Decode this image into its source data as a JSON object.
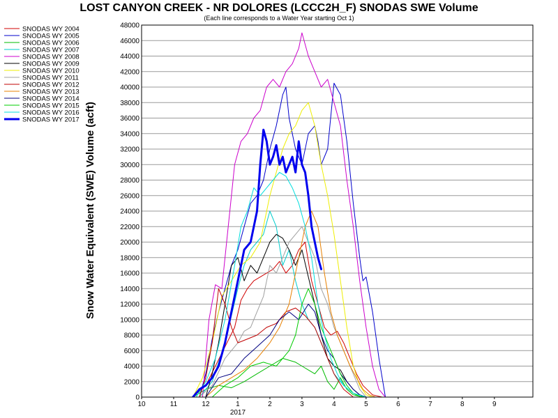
{
  "chart_data": {
    "type": "line",
    "title": "LOST CANYON CREEK - NR DOLORES (LCCC2H_F) SNODAS SWE Volume",
    "subtitle": "(Each line corresponds to a Water Year starting Oct 1)",
    "xlabel": "",
    "ylabel": "Snow Water Equivalent (SWE) Volume (acft)",
    "ylim": [
      0,
      48000
    ],
    "yticks": [
      0,
      2000,
      4000,
      6000,
      8000,
      10000,
      12000,
      14000,
      16000,
      18000,
      20000,
      22000,
      24000,
      26000,
      28000,
      30000,
      32000,
      34000,
      36000,
      38000,
      40000,
      42000,
      44000,
      46000,
      48000
    ],
    "xlim": [
      10,
      10.95
    ],
    "x_unit": "month of water year (10 = Oct 1 ... 10 = Oct 1 of next year)",
    "xticks": [
      {
        "label": "10",
        "x": 0
      },
      {
        "label": "11",
        "x": 1
      },
      {
        "label": "12",
        "x": 2
      },
      {
        "label": "1",
        "x": 3
      },
      {
        "label": "2",
        "x": 4
      },
      {
        "label": "3",
        "x": 5
      },
      {
        "label": "4",
        "x": 6
      },
      {
        "label": "5",
        "x": 7
      },
      {
        "label": "6",
        "x": 8
      },
      {
        "label": "7",
        "x": 9
      },
      {
        "label": "8",
        "x": 10
      },
      {
        "label": "9",
        "x": 11
      }
    ],
    "x_sublabel": "2017",
    "x_domain": [
      0,
      12.2
    ],
    "grid": true,
    "legend_position": "left",
    "series": [
      {
        "name": "SNODAS WY 2004",
        "color": "#d00000",
        "width": 1,
        "x": [
          1.6,
          2.0,
          2.3,
          2.6,
          2.9,
          3.1,
          3.3,
          3.5,
          3.7,
          3.9,
          4.1,
          4.3,
          4.5,
          4.7,
          4.9,
          5.1,
          5.3,
          5.5,
          5.7,
          5.9,
          6.1,
          6.3,
          6.5,
          6.7,
          6.9,
          7.2,
          7.5
        ],
        "y": [
          0,
          1500,
          4000,
          6500,
          9000,
          12500,
          14000,
          15000,
          15500,
          16000,
          16500,
          17500,
          16000,
          17000,
          19000,
          20000,
          15000,
          12000,
          9000,
          8000,
          8500,
          7000,
          5000,
          3000,
          1500,
          300,
          0
        ]
      },
      {
        "name": "SNODAS WY 2005",
        "color": "#0000cc",
        "width": 1,
        "x": [
          1.8,
          2.0,
          2.2,
          2.4,
          2.6,
          2.8,
          3.0,
          3.2,
          3.4,
          3.6,
          3.8,
          4.0,
          4.2,
          4.4,
          4.5,
          4.6,
          4.8,
          5.0,
          5.2,
          5.4,
          5.5,
          5.6,
          5.8,
          6.0,
          6.2,
          6.4,
          6.6,
          6.8,
          6.9,
          7.0,
          7.2,
          7.4,
          7.6
        ],
        "y": [
          0,
          3000,
          7500,
          11000,
          14000,
          17000,
          19000,
          22000,
          25000,
          26000,
          28000,
          32000,
          35000,
          39000,
          40000,
          36000,
          32000,
          30000,
          34000,
          35000,
          33000,
          30000,
          32000,
          40500,
          39000,
          33000,
          25000,
          18000,
          15000,
          15500,
          11000,
          5000,
          0
        ]
      },
      {
        "name": "SNODAS WY 2006",
        "color": "#00bb00",
        "width": 1,
        "x": [
          1.6,
          2.0,
          2.4,
          2.8,
          3.2,
          3.6,
          4.0,
          4.4,
          4.8,
          5.0,
          5.2,
          5.4,
          5.6,
          5.8,
          6.0,
          6.2,
          6.4,
          6.6,
          6.8,
          7.0
        ],
        "y": [
          0,
          1000,
          1500,
          1200,
          2000,
          3000,
          4000,
          5000,
          4500,
          4000,
          3500,
          3000,
          4000,
          2000,
          1000,
          2500,
          1000,
          300,
          100,
          0
        ]
      },
      {
        "name": "SNODAS WY 2007",
        "color": "#00cccc",
        "width": 1,
        "x": [
          1.8,
          2.2,
          2.6,
          3.0,
          3.2,
          3.4,
          3.6,
          3.8,
          4.0,
          4.2,
          4.4,
          4.6,
          4.8,
          5.0,
          5.2,
          5.4,
          5.6,
          5.8,
          6.0,
          6.3,
          6.6,
          7.0
        ],
        "y": [
          0,
          2000,
          7000,
          14000,
          17000,
          19000,
          20000,
          21000,
          24000,
          22000,
          17000,
          19000,
          15000,
          12000,
          10000,
          9000,
          7000,
          5000,
          3000,
          1500,
          500,
          0
        ]
      },
      {
        "name": "SNODAS WY 2008",
        "color": "#cc00cc",
        "width": 1,
        "x": [
          1.9,
          2.1,
          2.3,
          2.5,
          2.7,
          2.9,
          3.1,
          3.3,
          3.5,
          3.7,
          3.9,
          4.1,
          4.3,
          4.5,
          4.7,
          4.9,
          5.0,
          5.2,
          5.4,
          5.6,
          5.8,
          6.0,
          6.2,
          6.4,
          6.6,
          6.8,
          7.0,
          7.2,
          7.4,
          7.6
        ],
        "y": [
          0,
          10000,
          14500,
          14000,
          22000,
          30000,
          33000,
          34000,
          36000,
          37000,
          40000,
          41000,
          40000,
          42000,
          43000,
          45000,
          47000,
          44000,
          42000,
          40000,
          41000,
          38000,
          35000,
          28000,
          22000,
          15000,
          9000,
          4000,
          1000,
          0
        ]
      },
      {
        "name": "SNODAS WY 2009",
        "color": "#000000",
        "width": 1,
        "x": [
          2.0,
          2.2,
          2.4,
          2.6,
          2.8,
          3.0,
          3.2,
          3.4,
          3.6,
          3.8,
          4.0,
          4.2,
          4.4,
          4.6,
          4.8,
          5.0,
          5.2,
          5.4,
          5.6,
          5.8,
          6.0,
          6.2,
          6.4,
          6.6,
          6.8,
          7.0
        ],
        "y": [
          0,
          3000,
          7000,
          12000,
          17000,
          18000,
          15000,
          17000,
          16000,
          18000,
          20000,
          21000,
          20500,
          19000,
          17000,
          19000,
          15500,
          12000,
          8000,
          5000,
          4000,
          3500,
          2000,
          1000,
          300,
          0
        ]
      },
      {
        "name": "SNODAS WY 2010",
        "color": "#eeee00",
        "width": 1,
        "x": [
          1.6,
          1.9,
          2.2,
          2.5,
          2.8,
          3.1,
          3.4,
          3.7,
          4.0,
          4.2,
          4.4,
          4.6,
          4.8,
          5.0,
          5.2,
          5.4,
          5.6,
          5.8,
          6.0,
          6.2,
          6.4,
          6.6,
          6.8,
          7.0,
          7.2
        ],
        "y": [
          0,
          2500,
          7000,
          13000,
          15000,
          17000,
          18000,
          20000,
          26000,
          29000,
          32000,
          34000,
          35000,
          37000,
          38000,
          35000,
          30000,
          26000,
          21000,
          15000,
          9000,
          4000,
          1500,
          300,
          0
        ]
      },
      {
        "name": "SNODAS WY 2011",
        "color": "#a0a0a0",
        "width": 1,
        "x": [
          1.8,
          2.2,
          2.6,
          3.0,
          3.2,
          3.4,
          3.6,
          3.8,
          4.0,
          4.2,
          4.4,
          4.6,
          4.8,
          5.0,
          5.2,
          5.4,
          5.6,
          5.8,
          6.0,
          6.2,
          6.4,
          6.6,
          6.8,
          7.0
        ],
        "y": [
          0,
          1500,
          5000,
          7000,
          8500,
          9000,
          11000,
          13000,
          17000,
          16000,
          18000,
          20000,
          21000,
          22000,
          20000,
          18000,
          14000,
          12000,
          9000,
          7000,
          5000,
          3000,
          1000,
          0
        ]
      },
      {
        "name": "SNODAS WY 2012",
        "color": "#c00000",
        "width": 1,
        "x": [
          1.8,
          2.0,
          2.2,
          2.4,
          2.6,
          2.8,
          3.0,
          3.3,
          3.6,
          3.9,
          4.2,
          4.5,
          4.8,
          5.1,
          5.4,
          5.7,
          6.0,
          6.3,
          6.6
        ],
        "y": [
          0,
          2500,
          7000,
          14000,
          12000,
          9000,
          7000,
          7500,
          8000,
          9000,
          9500,
          11000,
          11500,
          10500,
          9000,
          6000,
          3000,
          1000,
          0
        ]
      },
      {
        "name": "SNODAS WY 2013",
        "color": "#e88000",
        "width": 1,
        "x": [
          2.0,
          2.4,
          2.8,
          3.2,
          3.6,
          4.0,
          4.3,
          4.6,
          4.9,
          5.1,
          5.3,
          5.5,
          5.7,
          5.9,
          6.1,
          6.3,
          6.5,
          6.7,
          6.9,
          7.1,
          7.3
        ],
        "y": [
          0,
          1500,
          2500,
          3500,
          5000,
          7000,
          9000,
          12000,
          18000,
          22000,
          24000,
          22000,
          16000,
          11000,
          8000,
          6000,
          4000,
          2500,
          1000,
          300,
          0
        ]
      },
      {
        "name": "SNODAS WY 2014",
        "color": "#000080",
        "width": 1,
        "x": [
          2.0,
          2.4,
          2.8,
          3.2,
          3.6,
          4.0,
          4.3,
          4.6,
          4.9,
          5.2,
          5.4,
          5.6,
          5.8,
          6.0,
          6.2,
          6.4,
          6.6,
          6.8,
          7.0
        ],
        "y": [
          0,
          2500,
          3000,
          5000,
          6500,
          8000,
          10000,
          11000,
          10000,
          12000,
          11000,
          8000,
          6000,
          5000,
          3000,
          2000,
          1000,
          300,
          0
        ]
      },
      {
        "name": "SNODAS WY 2015",
        "color": "#00cc00",
        "width": 1,
        "x": [
          2.2,
          2.6,
          3.0,
          3.4,
          3.8,
          4.2,
          4.6,
          4.8,
          5.0,
          5.2,
          5.4,
          5.6,
          5.8,
          6.0,
          6.2,
          6.4,
          6.6,
          6.8,
          7.0,
          7.2
        ],
        "y": [
          0,
          1500,
          2500,
          4000,
          4500,
          4000,
          6000,
          8000,
          12000,
          14000,
          12000,
          9000,
          7000,
          5000,
          3000,
          1500,
          500,
          100,
          0,
          0
        ]
      },
      {
        "name": "SNODAS WY 2016",
        "color": "#00dddd",
        "width": 1,
        "x": [
          1.7,
          2.0,
          2.3,
          2.6,
          2.9,
          3.1,
          3.3,
          3.5,
          3.7,
          3.9,
          4.1,
          4.3,
          4.5,
          4.7,
          4.9,
          5.1,
          5.3,
          5.5,
          5.7,
          5.9,
          6.1,
          6.3,
          6.6,
          7.0
        ],
        "y": [
          0,
          2000,
          5000,
          10000,
          17000,
          22000,
          24000,
          27000,
          26000,
          27000,
          28000,
          29000,
          28500,
          27000,
          25000,
          22000,
          18000,
          12000,
          8000,
          5000,
          3000,
          1500,
          500,
          0
        ]
      },
      {
        "name": "SNODAS WY 2017",
        "color": "#0000ee",
        "width": 3,
        "x": [
          1.6,
          1.8,
          2.0,
          2.2,
          2.4,
          2.6,
          2.8,
          3.0,
          3.2,
          3.4,
          3.6,
          3.7,
          3.8,
          3.9,
          4.0,
          4.1,
          4.2,
          4.3,
          4.4,
          4.5,
          4.6,
          4.7,
          4.8,
          4.9,
          5.0,
          5.1,
          5.2,
          5.3,
          5.4,
          5.5,
          5.6
        ],
        "y": [
          0,
          1000,
          1500,
          2500,
          4000,
          7000,
          11000,
          15000,
          19000,
          20000,
          24000,
          30000,
          34500,
          33000,
          30000,
          31000,
          32500,
          30000,
          31000,
          29000,
          30000,
          31000,
          29000,
          33000,
          30000,
          29000,
          26000,
          22000,
          20000,
          18000,
          16500
        ]
      }
    ]
  }
}
